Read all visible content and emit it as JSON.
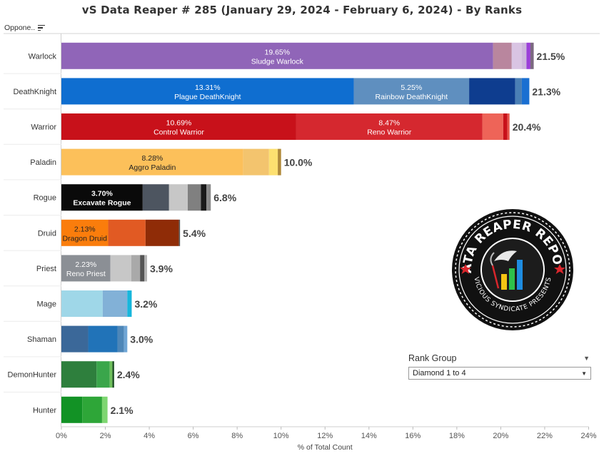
{
  "page_title": "vS Data Reaper #  285 (January 29, 2024 - February 6, 2024) - By Ranks",
  "row_header": "Oppone..",
  "filter": {
    "label": "Rank Group",
    "value": "Diamond 1 to 4"
  },
  "logo": {
    "top_text": "DATA REAPER REPORT",
    "bottom_text": "VICIOUS SYNDICATE PRESENTS"
  },
  "chart_data": {
    "type": "bar",
    "orientation": "horizontal",
    "stacked": true,
    "xlabel": "% of Total Count",
    "xlim": [
      0,
      24
    ],
    "x_ticks": [
      "0%",
      "2%",
      "4%",
      "6%",
      "8%",
      "10%",
      "12%",
      "14%",
      "16%",
      "18%",
      "20%",
      "22%",
      "24%"
    ],
    "grid": false,
    "categories": [
      "Warlock",
      "DeathKnight",
      "Warrior",
      "Paladin",
      "Rogue",
      "Druid",
      "Priest",
      "Mage",
      "Shaman",
      "DemonHunter",
      "Hunter"
    ],
    "totals": [
      "21.5%",
      "21.3%",
      "20.4%",
      "10.0%",
      "6.8%",
      "5.4%",
      "3.9%",
      "3.2%",
      "3.0%",
      "2.4%",
      "2.1%"
    ],
    "rows": [
      {
        "class": "Warlock",
        "total": 21.5,
        "segments": [
          {
            "value": 19.65,
            "color": "#9065b8",
            "pct": "19.65%",
            "name": "Sludge Warlock"
          },
          {
            "value": 0.85,
            "color": "#b9869e"
          },
          {
            "value": 0.45,
            "color": "#d9c4e3"
          },
          {
            "value": 0.22,
            "color": "#cdb6dc"
          },
          {
            "value": 0.18,
            "color": "#9b3fd8"
          },
          {
            "value": 0.15,
            "color": "#7c6a80"
          }
        ]
      },
      {
        "class": "DeathKnight",
        "total": 21.3,
        "segments": [
          {
            "value": 13.31,
            "color": "#0f6ed0",
            "pct": "13.31%",
            "name": "Plague DeathKnight"
          },
          {
            "value": 5.25,
            "color": "#5f8fbf",
            "pct": "5.25%",
            "name": "Rainbow DeathKnight"
          },
          {
            "value": 2.1,
            "color": "#0e3d8f"
          },
          {
            "value": 0.3,
            "color": "#4a7fb5"
          },
          {
            "value": 0.34,
            "color": "#1a6fd1"
          }
        ]
      },
      {
        "class": "Warrior",
        "total": 20.4,
        "segments": [
          {
            "value": 10.69,
            "color": "#c8111a",
            "pct": "10.69%",
            "name": "Control Warrior"
          },
          {
            "value": 8.47,
            "color": "#d5282f",
            "pct": "8.47%",
            "name": "Reno Warrior"
          },
          {
            "value": 0.95,
            "color": "#ee6458"
          },
          {
            "value": 0.19,
            "color": "#c8111a"
          },
          {
            "value": 0.1,
            "color": "#e6544a"
          }
        ]
      },
      {
        "class": "Paladin",
        "total": 10.0,
        "segments": [
          {
            "value": 8.28,
            "color": "#fcc05a",
            "pct": "8.28%",
            "name": "Aggro Paladin"
          },
          {
            "value": 1.17,
            "color": "#f3c46e"
          },
          {
            "value": 0.4,
            "color": "#fde070"
          },
          {
            "value": 0.15,
            "color": "#b08a3a"
          }
        ]
      },
      {
        "class": "Rogue",
        "total": 6.8,
        "segments": [
          {
            "value": 3.7,
            "color": "#0a0a0a",
            "pct": "3.70%",
            "name": "Excavate Rogue"
          },
          {
            "value": 1.2,
            "color": "#4d5560"
          },
          {
            "value": 0.85,
            "color": "#c7c7c7"
          },
          {
            "value": 0.6,
            "color": "#808080"
          },
          {
            "value": 0.25,
            "color": "#1a1a1a"
          },
          {
            "value": 0.2,
            "color": "#8a8a8a"
          }
        ]
      },
      {
        "class": "Druid",
        "total": 5.4,
        "segments": [
          {
            "value": 2.13,
            "color": "#fa7d0c",
            "pct": "2.13%",
            "name": "Dragon Druid"
          },
          {
            "value": 1.7,
            "color": "#e15a23"
          },
          {
            "value": 1.52,
            "color": "#8f2c07"
          },
          {
            "value": 0.05,
            "color": "#555555"
          }
        ]
      },
      {
        "class": "Priest",
        "total": 3.9,
        "segments": [
          {
            "value": 2.23,
            "color": "#8b8f95",
            "pct": "2.23%",
            "name": "Reno Priest"
          },
          {
            "value": 0.95,
            "color": "#c7c7c7"
          },
          {
            "value": 0.4,
            "color": "#a9a9a9"
          },
          {
            "value": 0.2,
            "color": "#555555"
          },
          {
            "value": 0.12,
            "color": "#b5b5b5"
          }
        ]
      },
      {
        "class": "Mage",
        "total": 3.2,
        "segments": [
          {
            "value": 1.88,
            "color": "#9fd7e8"
          },
          {
            "value": 1.12,
            "color": "#82b1d7"
          },
          {
            "value": 0.2,
            "color": "#17b6dc"
          }
        ]
      },
      {
        "class": "Shaman",
        "total": 3.0,
        "segments": [
          {
            "value": 1.22,
            "color": "#3b6899"
          },
          {
            "value": 1.33,
            "color": "#2173b8"
          },
          {
            "value": 0.3,
            "color": "#4d86b8"
          },
          {
            "value": 0.15,
            "color": "#6fa5d5"
          }
        ]
      },
      {
        "class": "DemonHunter",
        "total": 2.4,
        "segments": [
          {
            "value": 1.6,
            "color": "#2e7f3d"
          },
          {
            "value": 0.6,
            "color": "#3aa64b"
          },
          {
            "value": 0.12,
            "color": "#6ec05b"
          },
          {
            "value": 0.08,
            "color": "#1d4f24"
          }
        ]
      },
      {
        "class": "Hunter",
        "total": 2.1,
        "segments": [
          {
            "value": 0.95,
            "color": "#129225"
          },
          {
            "value": 0.9,
            "color": "#2ea638"
          },
          {
            "value": 0.25,
            "color": "#7ed671"
          }
        ]
      }
    ]
  }
}
